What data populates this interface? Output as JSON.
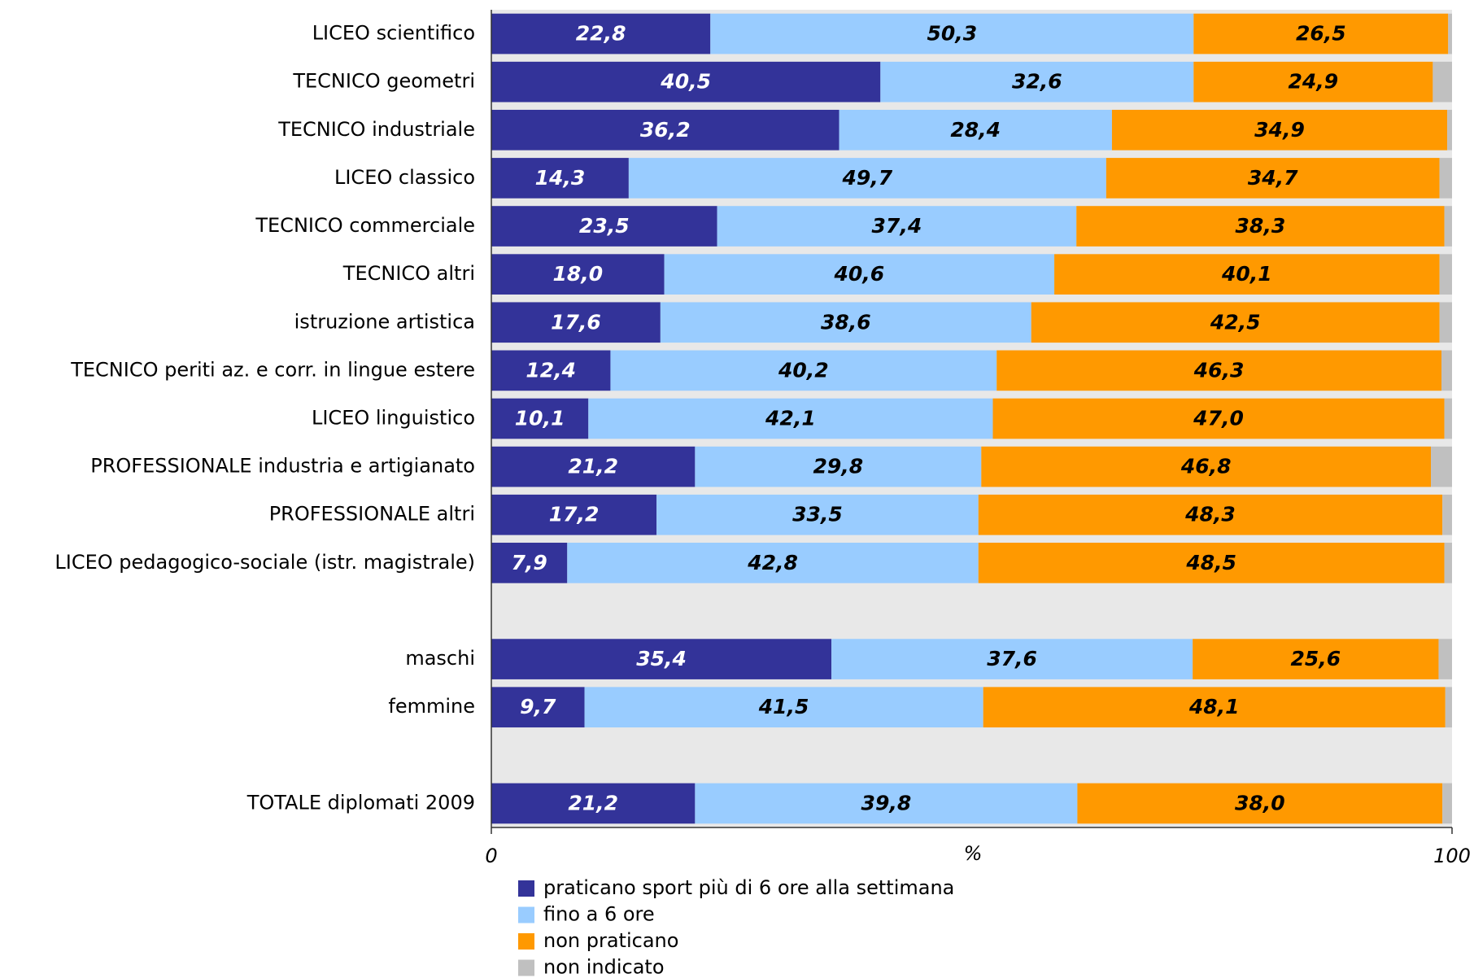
{
  "chart_data": {
    "type": "stacked_barh",
    "categories": [
      "LICEO scientifico",
      "TECNICO geometri",
      "TECNICO industriale",
      "LICEO classico",
      "TECNICO commerciale",
      "TECNICO altri",
      "istruzione artistica",
      "TECNICO periti az. e corr. in lingue estere",
      "LICEO linguistico",
      "PROFESSIONALE industria e artigianato",
      "PROFESSIONALE altri",
      "LICEO pedagogico-sociale (istr. magistrale)",
      null,
      "maschi",
      "femmine",
      null,
      "TOTALE diplomati 2009"
    ],
    "series": [
      {
        "name": "praticano sport più di 6 ore alla settimana",
        "color": "#333399",
        "label_color": "#ffffff",
        "values": [
          22.8,
          40.5,
          36.2,
          14.3,
          23.5,
          18,
          17.6,
          12.4,
          10.1,
          21.2,
          17.2,
          7.9,
          null,
          35.4,
          9.7,
          null,
          21.2
        ],
        "value_labels": [
          "22,8",
          "40,5",
          "36,2",
          "14,3",
          "23,5",
          "18,0",
          "17,6",
          "12,4",
          "10,1",
          "21,2",
          "17,2",
          "7,9",
          null,
          "35,4",
          "9,7",
          null,
          "21,2"
        ]
      },
      {
        "name": "fino a 6 ore",
        "color": "#99ccff",
        "label_color": "#000000",
        "values": [
          50.3,
          32.6,
          28.4,
          49.7,
          37.4,
          40.6,
          38.6,
          40.2,
          42.1,
          29.8,
          33.5,
          42.8,
          null,
          37.6,
          41.5,
          null,
          39.8
        ],
        "value_labels": [
          "50,3",
          "32,6",
          "28,4",
          "49,7",
          "37,4",
          "40,6",
          "38,6",
          "40,2",
          "42,1",
          "29,8",
          "33,5",
          "42,8",
          null,
          "37,6",
          "41,5",
          null,
          "39,8"
        ]
      },
      {
        "name": "non praticano",
        "color": "#ff9900",
        "label_color": "#000000",
        "values": [
          26.5,
          24.9,
          34.9,
          34.7,
          38.3,
          40.1,
          42.5,
          46.3,
          47,
          46.8,
          48.3,
          48.5,
          null,
          25.6,
          48.1,
          null,
          38
        ],
        "value_labels": [
          "26,5",
          "24,9",
          "34,9",
          "34,7",
          "38,3",
          "40,1",
          "42,5",
          "46,3",
          "47,0",
          "46,8",
          "48,3",
          "48,5",
          null,
          "25,6",
          "48,1",
          null,
          "38,0"
        ]
      },
      {
        "name": "non indicato",
        "color": "#c0c0c0",
        "values": [
          0.4,
          2,
          0.5,
          1.3,
          0.8,
          1.3,
          1.3,
          1.1,
          0.8,
          2.2,
          1,
          0.8,
          null,
          1.4,
          0.7,
          null,
          1
        ]
      }
    ],
    "xlim": [
      0,
      100
    ],
    "xticks": [
      0,
      100
    ],
    "xlabel": "%",
    "legend": "bottom"
  }
}
